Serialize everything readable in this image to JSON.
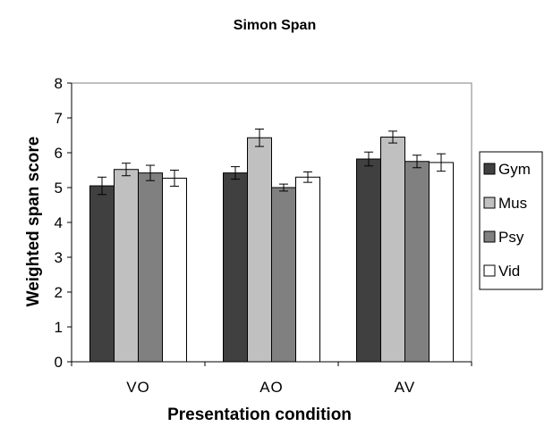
{
  "chart_data": {
    "type": "bar",
    "title": "Simon Span",
    "xlabel": "Presentation condition",
    "ylabel": "Weighted span score",
    "ylim": [
      0,
      8
    ],
    "yticks": [
      0,
      1,
      2,
      3,
      4,
      5,
      6,
      7,
      8
    ],
    "categories": [
      "VO",
      "AO",
      "AV"
    ],
    "grid": false,
    "legend_position": "right",
    "series": [
      {
        "name": "Gym",
        "color": "#404040",
        "values": [
          5.05,
          5.42,
          5.82
        ],
        "errors": [
          0.25,
          0.18,
          0.2
        ]
      },
      {
        "name": "Mus",
        "color": "#c0c0c0",
        "values": [
          5.52,
          6.43,
          6.45
        ],
        "errors": [
          0.18,
          0.25,
          0.17
        ]
      },
      {
        "name": "Psy",
        "color": "#808080",
        "values": [
          5.42,
          5.0,
          5.75
        ],
        "errors": [
          0.22,
          0.1,
          0.18
        ]
      },
      {
        "name": "Vid",
        "color": "#ffffff",
        "values": [
          5.27,
          5.3,
          5.72
        ],
        "errors": [
          0.23,
          0.15,
          0.25
        ]
      }
    ]
  }
}
